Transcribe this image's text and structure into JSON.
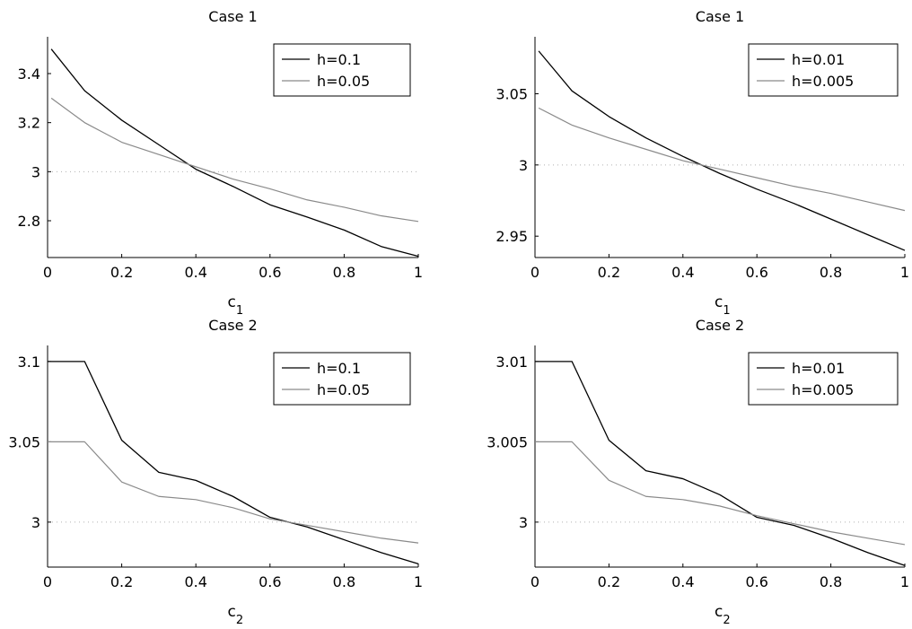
{
  "chart_data": [
    {
      "type": "line",
      "title": "Case 1",
      "xlabel": "c",
      "xlabel_sub": "1",
      "ylabel": "",
      "xlim": [
        0,
        1
      ],
      "ylim": [
        2.65,
        3.55
      ],
      "xticks": [
        0,
        0.2,
        0.4,
        0.6,
        0.8,
        1
      ],
      "xtick_labels": [
        "0",
        "0.2",
        "0.4",
        "0.6",
        "0.8",
        "1"
      ],
      "yticks": [
        2.8,
        3,
        3.2,
        3.4
      ],
      "ytick_labels": [
        "2.8",
        "3",
        "3.2",
        "3.4"
      ],
      "reference_y": 3,
      "legend_position": "top-right",
      "series": [
        {
          "name": "h=0.1",
          "color": "#000000",
          "x": [
            0.01,
            0.1,
            0.2,
            0.3,
            0.4,
            0.5,
            0.6,
            0.7,
            0.8,
            0.9,
            1.0
          ],
          "y": [
            3.5,
            3.33,
            3.21,
            3.11,
            3.01,
            2.94,
            2.865,
            2.815,
            2.762,
            2.695,
            2.655
          ]
        },
        {
          "name": "h=0.05",
          "color": "#8a8a8a",
          "x": [
            0.01,
            0.1,
            0.2,
            0.3,
            0.4,
            0.5,
            0.6,
            0.7,
            0.8,
            0.9,
            1.0
          ],
          "y": [
            3.3,
            3.2,
            3.12,
            3.07,
            3.02,
            2.97,
            2.93,
            2.885,
            2.855,
            2.82,
            2.797
          ]
        }
      ]
    },
    {
      "type": "line",
      "title": "Case 1",
      "xlabel": "c",
      "xlabel_sub": "1",
      "ylabel": "",
      "xlim": [
        0,
        1
      ],
      "ylim": [
        2.935,
        3.09
      ],
      "xticks": [
        0,
        0.2,
        0.4,
        0.6,
        0.8,
        1
      ],
      "xtick_labels": [
        "0",
        "0.2",
        "0.4",
        "0.6",
        "0.8",
        "1"
      ],
      "yticks": [
        2.95,
        3,
        3.05
      ],
      "ytick_labels": [
        "2.95",
        "3",
        "3.05"
      ],
      "reference_y": 3,
      "legend_position": "top-right",
      "series": [
        {
          "name": "h=0.01",
          "color": "#000000",
          "x": [
            0.01,
            0.1,
            0.2,
            0.3,
            0.4,
            0.5,
            0.6,
            0.7,
            0.8,
            0.9,
            1.0
          ],
          "y": [
            3.08,
            3.052,
            3.034,
            3.019,
            3.006,
            2.994,
            2.983,
            2.973,
            2.962,
            2.951,
            2.94
          ]
        },
        {
          "name": "h=0.005",
          "color": "#8a8a8a",
          "x": [
            0.01,
            0.1,
            0.2,
            0.3,
            0.4,
            0.5,
            0.6,
            0.7,
            0.8,
            0.9,
            1.0
          ],
          "y": [
            3.04,
            3.028,
            3.019,
            3.011,
            3.003,
            2.997,
            2.991,
            2.985,
            2.98,
            2.974,
            2.968
          ]
        }
      ]
    },
    {
      "type": "line",
      "title": "Case 2",
      "xlabel": "c",
      "xlabel_sub": "2",
      "ylabel": "",
      "xlim": [
        0,
        1
      ],
      "ylim": [
        2.972,
        3.11
      ],
      "xticks": [
        0,
        0.2,
        0.4,
        0.6,
        0.8,
        1
      ],
      "xtick_labels": [
        "0",
        "0.2",
        "0.4",
        "0.6",
        "0.8",
        "1"
      ],
      "yticks": [
        3,
        3.05,
        3.1
      ],
      "ytick_labels": [
        "3",
        "3.05",
        "3.1"
      ],
      "reference_y": 3,
      "legend_position": "top-right",
      "series": [
        {
          "name": "h=0.1",
          "color": "#000000",
          "x": [
            0,
            0.1,
            0.2,
            0.3,
            0.4,
            0.5,
            0.6,
            0.7,
            0.8,
            0.9,
            1.0
          ],
          "y": [
            3.1,
            3.1,
            3.051,
            3.031,
            3.026,
            3.016,
            3.003,
            2.997,
            2.989,
            2.981,
            2.974
          ]
        },
        {
          "name": "h=0.05",
          "color": "#8a8a8a",
          "x": [
            0,
            0.1,
            0.2,
            0.3,
            0.4,
            0.5,
            0.6,
            0.7,
            0.8,
            0.9,
            1.0
          ],
          "y": [
            3.05,
            3.05,
            3.025,
            3.016,
            3.014,
            3.009,
            3.002,
            2.998,
            2.994,
            2.99,
            2.987
          ]
        }
      ]
    },
    {
      "type": "line",
      "title": "Case 2",
      "xlabel": "c",
      "xlabel_sub": "2",
      "ylabel": "",
      "xlim": [
        0,
        1
      ],
      "ylim": [
        2.9972,
        3.011
      ],
      "xticks": [
        0,
        0.2,
        0.4,
        0.6,
        0.8,
        1
      ],
      "xtick_labels": [
        "0",
        "0.2",
        "0.4",
        "0.6",
        "0.8",
        "1"
      ],
      "yticks": [
        3,
        3.005,
        3.01
      ],
      "ytick_labels": [
        "3",
        "3.005",
        "3.01"
      ],
      "reference_y": 3,
      "legend_position": "top-right",
      "series": [
        {
          "name": "h=0.01",
          "color": "#000000",
          "x": [
            0,
            0.1,
            0.2,
            0.3,
            0.4,
            0.5,
            0.6,
            0.7,
            0.8,
            0.9,
            1.0
          ],
          "y": [
            3.01,
            3.01,
            3.0051,
            3.0032,
            3.0027,
            3.0017,
            3.0003,
            2.9998,
            2.999,
            2.9981,
            2.9973
          ]
        },
        {
          "name": "h=0.005",
          "color": "#8a8a8a",
          "x": [
            0,
            0.1,
            0.2,
            0.3,
            0.4,
            0.5,
            0.6,
            0.7,
            0.8,
            0.9,
            1.0
          ],
          "y": [
            3.005,
            3.005,
            3.0026,
            3.0016,
            3.0014,
            3.001,
            3.0004,
            2.9999,
            2.9994,
            2.999,
            2.9986
          ]
        }
      ]
    }
  ]
}
